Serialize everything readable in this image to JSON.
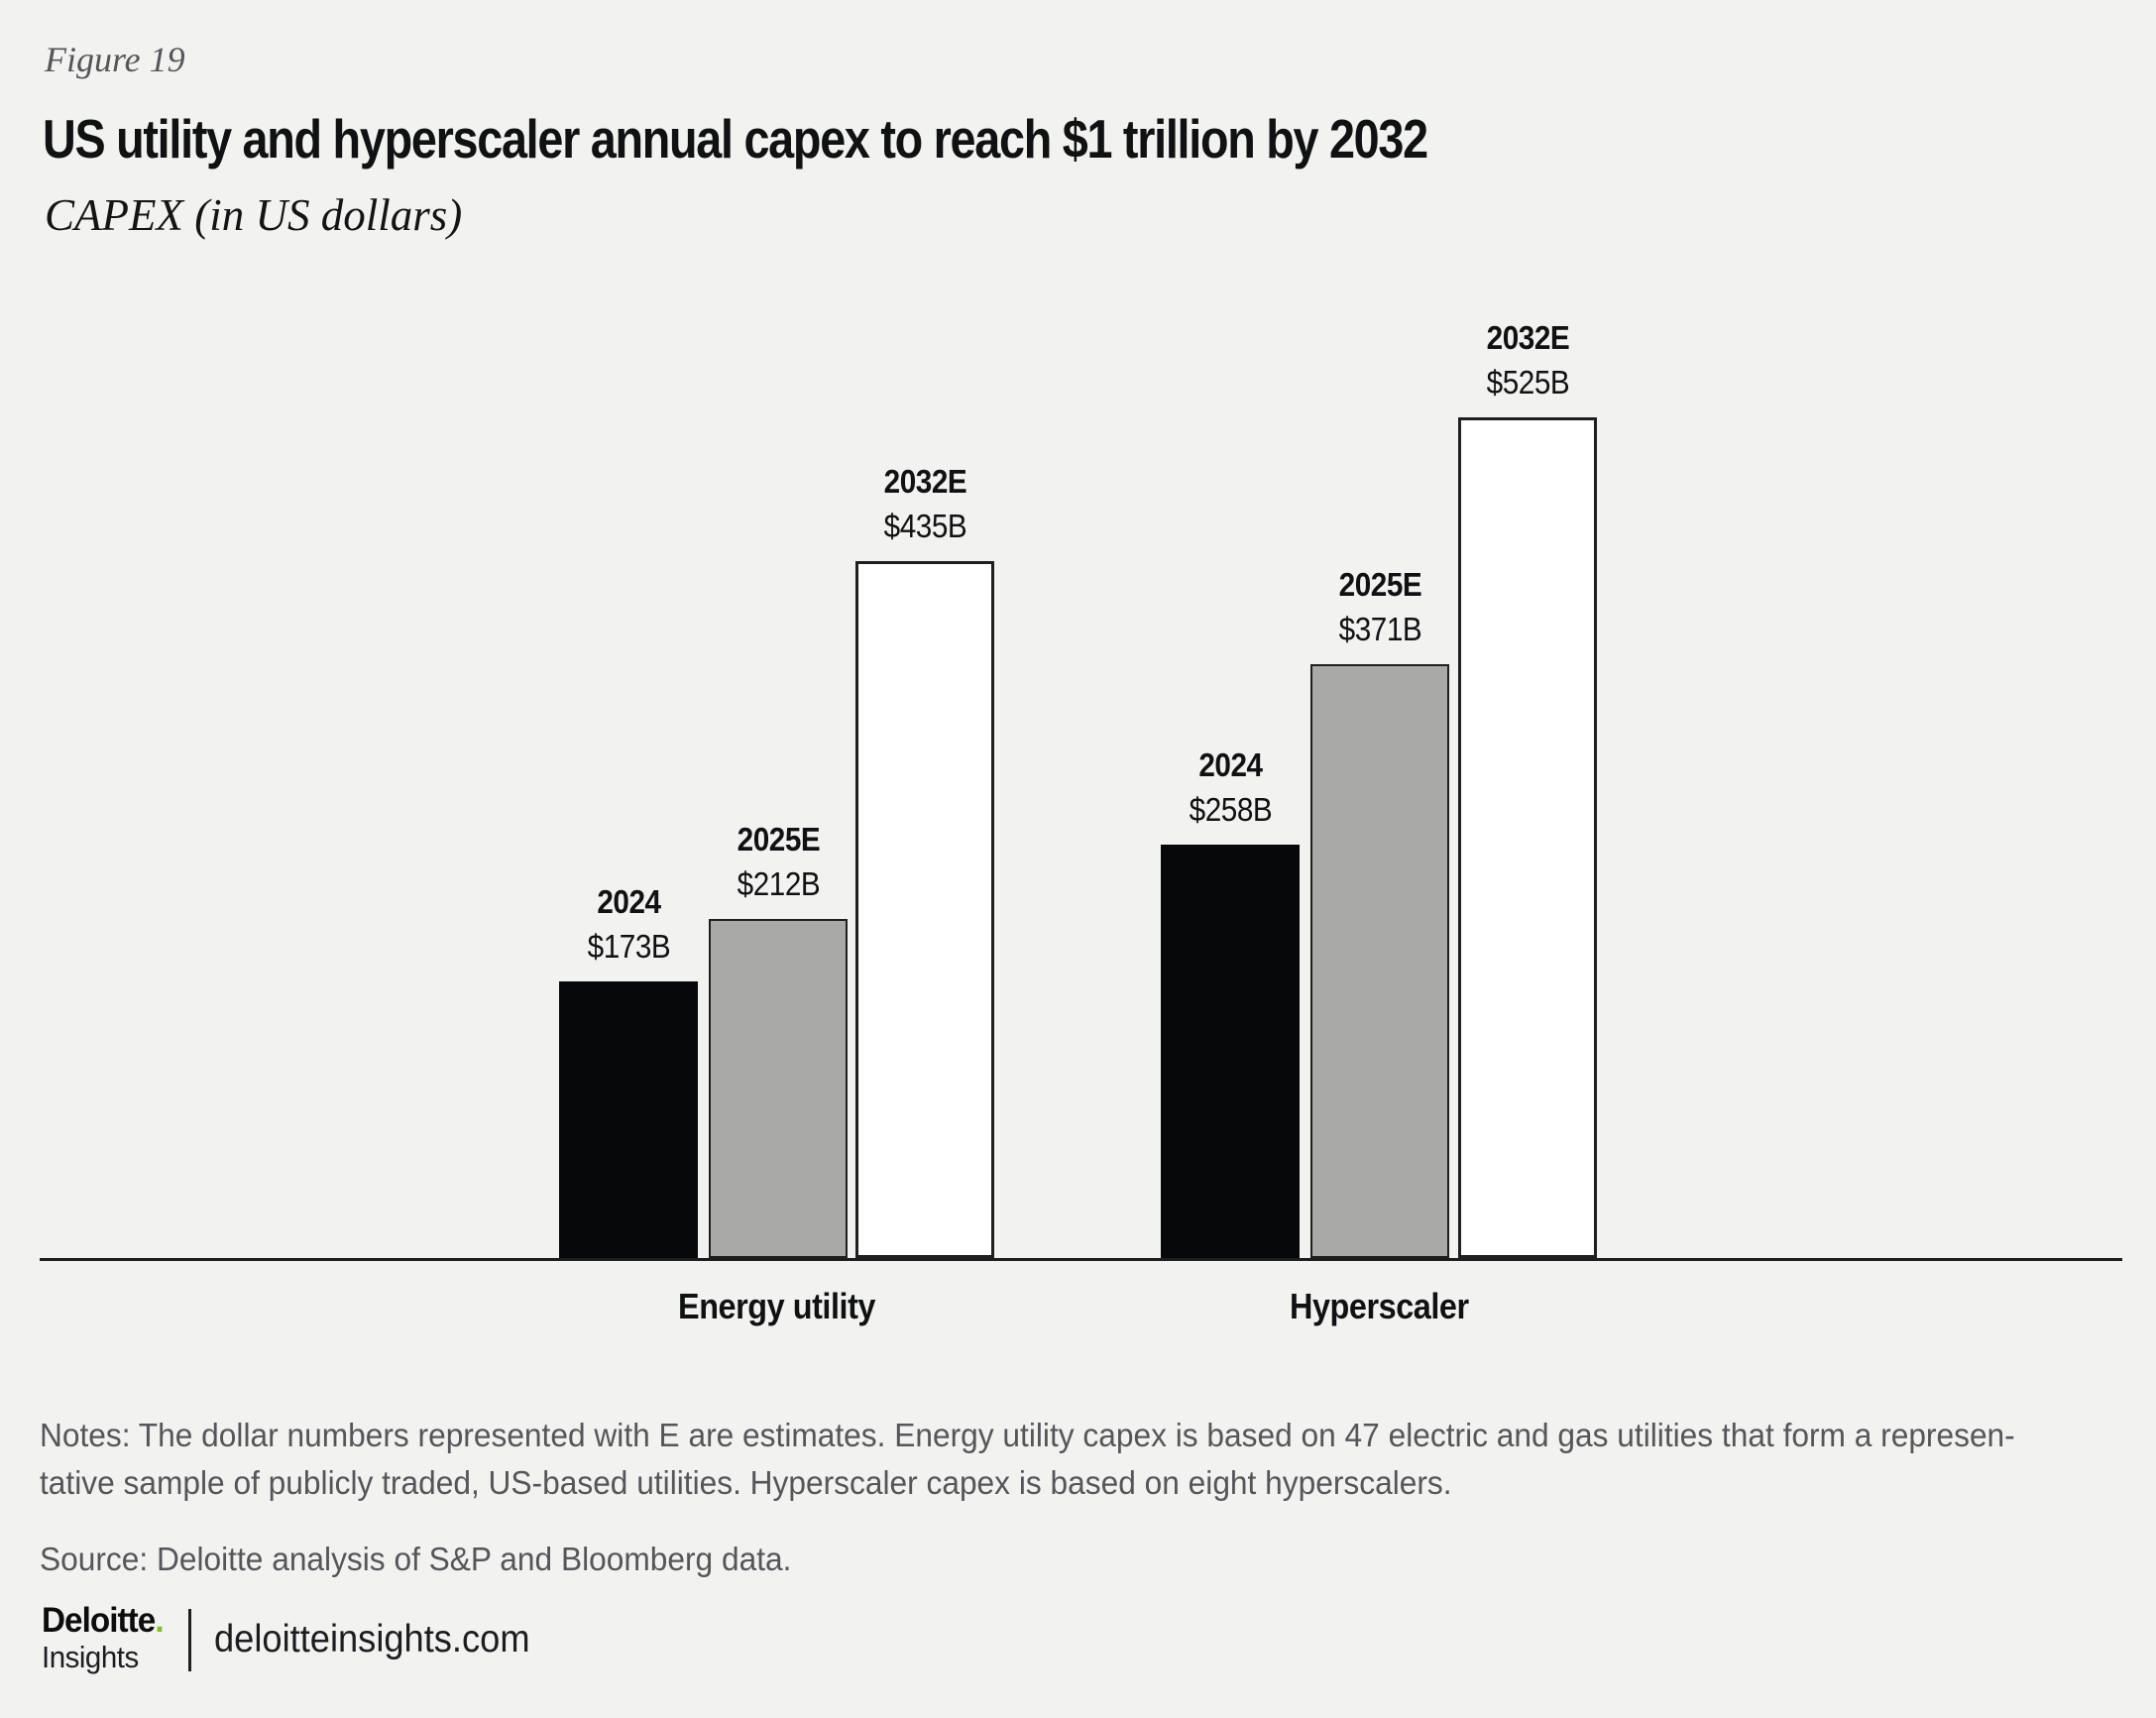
{
  "figure_label": "Figure 19",
  "chart_data": {
    "type": "bar",
    "title": "US utility and hyperscaler annual capex to reach $1 trillion by 2032",
    "subtitle": "CAPEX (in US dollars)",
    "unit": "US dollars, billions",
    "categories": [
      "Energy utility",
      "Hyperscaler"
    ],
    "series": [
      {
        "name": "2024",
        "values": [
          173,
          258
        ],
        "labels": [
          "$173B",
          "$258B"
        ],
        "color": "#070809"
      },
      {
        "name": "2025E",
        "values": [
          212,
          371
        ],
        "labels": [
          "$212B",
          "$371B"
        ],
        "color": "#a9a9a7"
      },
      {
        "name": "2032E",
        "values": [
          435,
          525
        ],
        "labels": [
          "$435B",
          "$525B"
        ],
        "color": "#ffffff"
      }
    ],
    "ylim": [
      0,
      560
    ],
    "grid": false,
    "axes": "x baseline only, no y-axis, no ticks",
    "legend_position": "none",
    "value_label_position": "above-bar"
  },
  "notes": {
    "lines": [
      "Notes: The dollar numbers represented with E are estimates. Energy utility capex is based on 47 electric and gas utilities that form a represen-",
      "tative sample of publicly traded, US-based utilities. Hyperscaler capex is based on eight hyperscalers."
    ]
  },
  "source": "Source: Deloitte analysis of S&P and Bloomberg data.",
  "footer": {
    "brand_name": "Deloitte",
    "brand_dot": ".",
    "brand_sub": "Insights",
    "site": "deloitteinsights.com"
  },
  "colors": {
    "background": "#f2f2f1",
    "bar_2024": "#070809",
    "bar_2025e": "#a9a9a7",
    "bar_2032e": "#ffffff",
    "bar_border": "#1f1f1f",
    "axis": "#1e1e1e",
    "title_text": "#101112",
    "muted_text": "#55565a",
    "brand_green": "#86bc25"
  }
}
